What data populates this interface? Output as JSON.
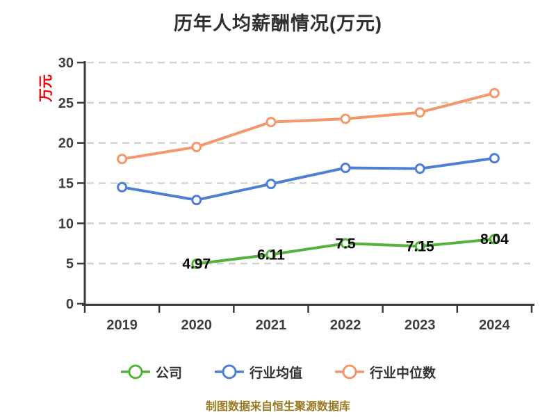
{
  "page": {
    "title": "历年人均薪酬情况(万元)",
    "y_axis_unit": "万元",
    "source_note": "制图数据来自恒生聚源数据库"
  },
  "chart_data": {
    "type": "line",
    "title": "历年人均薪酬情况(万元)",
    "categories": [
      "2019",
      "2020",
      "2021",
      "2022",
      "2023",
      "2024"
    ],
    "series": [
      {
        "name": "公司",
        "color": "#55b33c",
        "values": [
          null,
          4.97,
          6.11,
          7.5,
          7.15,
          8.04
        ],
        "point_labels": [
          "",
          "4.97",
          "6.11",
          "7.5",
          "7.15",
          "8.04"
        ],
        "show_labels": true
      },
      {
        "name": "行业均值",
        "color": "#4e7fd4",
        "values": [
          14.5,
          12.9,
          14.9,
          16.9,
          16.8,
          18.1
        ],
        "show_labels": false
      },
      {
        "name": "行业中位数",
        "color": "#f4976c",
        "values": [
          18.0,
          19.5,
          22.6,
          23.0,
          23.8,
          26.2
        ],
        "show_labels": false
      }
    ],
    "ylim": [
      0,
      30
    ],
    "yticks": [
      0,
      5,
      10,
      15,
      20,
      25,
      30
    ],
    "ylabel": "万元",
    "xlabel": "",
    "grid": "dashed-horizontal",
    "legend_position": "bottom",
    "marker": "circle-white-fill"
  },
  "style": {
    "background": "#ffffff",
    "grid_color": "#d3d3d3",
    "axis_color": "#3a3a3a",
    "tick_label_color": "#3e3e3e",
    "title_color": "#2f2f2f",
    "data_label_color": "#0a0a0a",
    "unit_label_color": "#e80000",
    "source_note_color": "#9a7a22",
    "legend_text_color": "#333333"
  }
}
